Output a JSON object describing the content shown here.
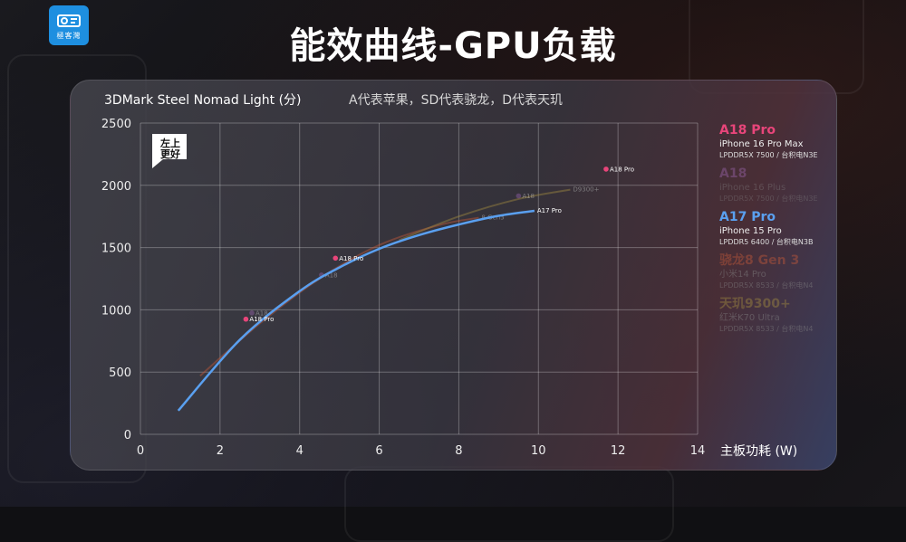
{
  "logo": {
    "text": "極客灣",
    "icon": "projector-icon"
  },
  "page_title": "能效曲线-GPU负载",
  "badge": {
    "line1": "左上",
    "line2": "更好"
  },
  "chart_data": {
    "type": "line",
    "title": "3DMark Steel Nomad Light (分)",
    "subtitle": "A代表苹果，SD代表骁龙，D代表天玑",
    "xlabel": "主板功耗 (W)",
    "ylabel": "",
    "xlim": [
      0,
      14
    ],
    "ylim": [
      0,
      2500
    ],
    "xticks": [
      0,
      2,
      4,
      6,
      8,
      10,
      12,
      14
    ],
    "yticks": [
      0,
      500,
      1000,
      1500,
      2000,
      2500
    ],
    "grid": true,
    "legend_position": "right",
    "series": [
      {
        "name": "A18 Pro",
        "device": "iPhone 16 Pro Max",
        "spec": "LPDDR5X 7500 / 台积电N3E",
        "color": "#e8457a",
        "opacity": 1,
        "type": "points",
        "points": [
          [
            2.65,
            925
          ],
          [
            4.9,
            1415
          ],
          [
            11.7,
            2130
          ]
        ],
        "point_labels": [
          "A18 Pro",
          "A18 Pro",
          "A18 Pro"
        ]
      },
      {
        "name": "A18",
        "device": "iPhone 16 Plus",
        "spec": "LPDDR5X 7500 / 台积电N3E",
        "color": "#b070c8",
        "opacity": 0.35,
        "type": "points",
        "points": [
          [
            2.8,
            975
          ],
          [
            4.55,
            1280
          ],
          [
            9.5,
            1915
          ]
        ],
        "point_labels": [
          "A18",
          "A18",
          "A18"
        ]
      },
      {
        "name": "A17 Pro",
        "device": "iPhone 15 Pro",
        "spec": "LPDDR5 6400 / 台积电N3B",
        "color": "#5aa0f0",
        "opacity": 1,
        "type": "line",
        "x": [
          0.95,
          2.5,
          4,
          5,
          6,
          7,
          8,
          9,
          9.9
        ],
        "y": [
          190,
          760,
          1150,
          1340,
          1490,
          1600,
          1685,
          1755,
          1795
        ],
        "end_label": "A17 Pro"
      },
      {
        "name": "骁龙8 Gen 3",
        "device": "小米14 Pro",
        "spec": "LPDDR5X 8533 / 台积电N4",
        "color": "#c0583a",
        "opacity": 0.45,
        "type": "line",
        "x": [
          1.5,
          3,
          4.5,
          6,
          7.5,
          8.5
        ],
        "y": [
          470,
          890,
          1250,
          1520,
          1680,
          1740
        ],
        "end_label": "8 Gen3"
      },
      {
        "name": "天玑9300+",
        "device": "红米K70 Ultra",
        "spec": "LPDDR5X 8533 / 台积电N4",
        "color": "#a08a40",
        "opacity": 0.45,
        "type": "line",
        "x": [
          6.5,
          8,
          9.5,
          10.8
        ],
        "y": [
          1560,
          1750,
          1890,
          1965
        ],
        "end_label": "D9300+"
      }
    ]
  }
}
